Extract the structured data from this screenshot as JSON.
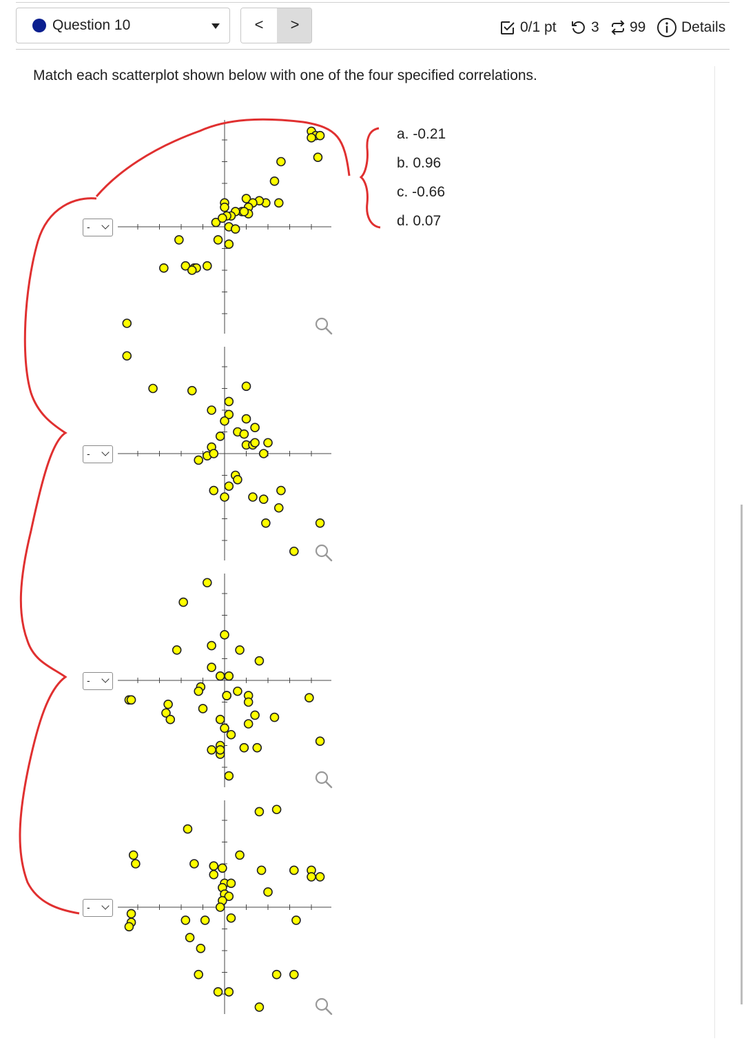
{
  "question": {
    "label": "Question 10",
    "indicator_color": "#0a1f8f"
  },
  "nav": {
    "prev": "<",
    "next": ">"
  },
  "status": {
    "points": "0/1 pt",
    "retries": "3",
    "attempts": "99",
    "details": "Details"
  },
  "prompt": "Match each scatterplot shown below with one of the four specified correlations.",
  "choices": [
    {
      "text": "a. -0.21"
    },
    {
      "text": "b. 0.96"
    },
    {
      "text": "c. -0.66"
    },
    {
      "text": "d. 0.07"
    }
  ],
  "dropdowns": [
    {
      "value": "-"
    },
    {
      "value": "-"
    },
    {
      "value": "-"
    },
    {
      "value": "-"
    }
  ],
  "colors": {
    "point_fill": "#ffff00",
    "annotation": "#e03030"
  },
  "chart_data": [
    {
      "type": "scatter",
      "points": [
        [
          4.0,
          4.4
        ],
        [
          4.2,
          4.2
        ],
        [
          4.4,
          4.2
        ],
        [
          4.0,
          4.1
        ],
        [
          4.3,
          3.2
        ],
        [
          2.6,
          3.0
        ],
        [
          2.3,
          2.1
        ],
        [
          1.9,
          1.1
        ],
        [
          1.6,
          1.2
        ],
        [
          2.5,
          1.1
        ],
        [
          1.0,
          1.3
        ],
        [
          1.3,
          1.1
        ],
        [
          1.1,
          0.9
        ],
        [
          0.8,
          0.7
        ],
        [
          1.1,
          0.6
        ],
        [
          0.0,
          1.1
        ],
        [
          0.0,
          0.9
        ],
        [
          0.5,
          0.7
        ],
        [
          0.3,
          0.5
        ],
        [
          0.9,
          0.7
        ],
        [
          0.1,
          0.5
        ],
        [
          -0.4,
          0.2
        ],
        [
          -0.1,
          0.4
        ],
        [
          0.2,
          0.0
        ],
        [
          0.5,
          -0.1
        ],
        [
          -0.3,
          -0.6
        ],
        [
          0.2,
          -0.8
        ],
        [
          -2.1,
          -0.6
        ],
        [
          -2.8,
          -1.9
        ],
        [
          -1.8,
          -1.8
        ],
        [
          -1.4,
          -1.9
        ],
        [
          -1.3,
          -1.9
        ],
        [
          -1.5,
          -2.0
        ],
        [
          -0.8,
          -1.8
        ]
      ]
    },
    {
      "type": "scatter",
      "points": [
        [
          -4.5,
          6.0
        ],
        [
          -4.5,
          4.5
        ],
        [
          -3.3,
          3.0
        ],
        [
          -1.5,
          2.9
        ],
        [
          1.0,
          3.1
        ],
        [
          0.2,
          2.4
        ],
        [
          -0.6,
          2.0
        ],
        [
          0.2,
          1.8
        ],
        [
          0.0,
          1.5
        ],
        [
          1.0,
          1.6
        ],
        [
          1.4,
          1.2
        ],
        [
          0.6,
          1.0
        ],
        [
          0.9,
          0.9
        ],
        [
          -0.2,
          0.8
        ],
        [
          -0.6,
          0.3
        ],
        [
          1.0,
          0.4
        ],
        [
          1.3,
          0.4
        ],
        [
          1.4,
          0.5
        ],
        [
          2.0,
          0.5
        ],
        [
          1.8,
          0.0
        ],
        [
          -0.8,
          -0.1
        ],
        [
          -0.5,
          0.0
        ],
        [
          -1.2,
          -0.3
        ],
        [
          0.5,
          -1.0
        ],
        [
          0.6,
          -1.2
        ],
        [
          0.2,
          -1.5
        ],
        [
          -0.5,
          -1.7
        ],
        [
          0.0,
          -2.0
        ],
        [
          1.3,
          -2.0
        ],
        [
          1.8,
          -2.1
        ],
        [
          2.6,
          -1.7
        ],
        [
          2.5,
          -2.5
        ],
        [
          1.9,
          -3.2
        ],
        [
          4.4,
          -3.2
        ],
        [
          3.2,
          -4.5
        ]
      ]
    },
    {
      "type": "scatter",
      "points": [
        [
          -0.8,
          4.5
        ],
        [
          -1.9,
          3.6
        ],
        [
          -2.2,
          1.4
        ],
        [
          -0.6,
          1.6
        ],
        [
          0.0,
          2.1
        ],
        [
          0.7,
          1.4
        ],
        [
          1.6,
          0.9
        ],
        [
          -0.6,
          0.6
        ],
        [
          -0.2,
          0.2
        ],
        [
          0.2,
          0.2
        ],
        [
          -1.1,
          -0.3
        ],
        [
          -1.2,
          -0.5
        ],
        [
          0.1,
          -0.7
        ],
        [
          0.6,
          -0.5
        ],
        [
          1.1,
          -0.7
        ],
        [
          1.1,
          -1.0
        ],
        [
          0.1,
          -0.7
        ],
        [
          -4.4,
          -0.9
        ],
        [
          -4.3,
          -0.9
        ],
        [
          -2.6,
          -1.1
        ],
        [
          -2.7,
          -1.5
        ],
        [
          -2.5,
          -1.8
        ],
        [
          -1.0,
          -1.3
        ],
        [
          -0.2,
          -1.8
        ],
        [
          0.0,
          -2.2
        ],
        [
          1.1,
          -2.0
        ],
        [
          1.4,
          -1.6
        ],
        [
          2.3,
          -1.7
        ],
        [
          0.3,
          -2.5
        ],
        [
          -0.6,
          -3.2
        ],
        [
          -0.2,
          -3.0
        ],
        [
          -0.2,
          -3.4
        ],
        [
          -0.2,
          -3.2
        ],
        [
          0.9,
          -3.1
        ],
        [
          1.5,
          -3.1
        ],
        [
          0.2,
          -4.4
        ],
        [
          3.9,
          -0.8
        ],
        [
          4.4,
          -2.8
        ]
      ]
    },
    {
      "type": "scatter",
      "points": [
        [
          1.6,
          4.4
        ],
        [
          2.4,
          4.5
        ],
        [
          -1.7,
          3.6
        ],
        [
          -4.2,
          2.4
        ],
        [
          -4.1,
          2.0
        ],
        [
          0.7,
          2.4
        ],
        [
          3.2,
          1.7
        ],
        [
          4.0,
          1.7
        ],
        [
          4.4,
          1.4
        ],
        [
          4.0,
          1.4
        ],
        [
          1.7,
          1.7
        ],
        [
          -1.4,
          2.0
        ],
        [
          -0.5,
          1.9
        ],
        [
          -0.1,
          1.8
        ],
        [
          -0.5,
          1.5
        ],
        [
          0.0,
          1.1
        ],
        [
          0.3,
          1.1
        ],
        [
          -0.1,
          0.9
        ],
        [
          0.0,
          0.6
        ],
        [
          0.2,
          0.5
        ],
        [
          -0.1,
          0.3
        ],
        [
          2.0,
          0.7
        ],
        [
          -4.3,
          -0.3
        ],
        [
          -4.3,
          -0.7
        ],
        [
          -4.4,
          -0.9
        ],
        [
          -1.8,
          -0.6
        ],
        [
          -0.9,
          -0.6
        ],
        [
          0.3,
          -0.5
        ],
        [
          -0.2,
          0.0
        ],
        [
          3.3,
          -0.6
        ],
        [
          -1.6,
          -1.4
        ],
        [
          -1.1,
          -1.9
        ],
        [
          -1.2,
          -3.1
        ],
        [
          -0.3,
          -3.9
        ],
        [
          0.2,
          -3.9
        ],
        [
          2.4,
          -3.1
        ],
        [
          3.2,
          -3.1
        ],
        [
          1.6,
          -4.6
        ]
      ]
    }
  ]
}
